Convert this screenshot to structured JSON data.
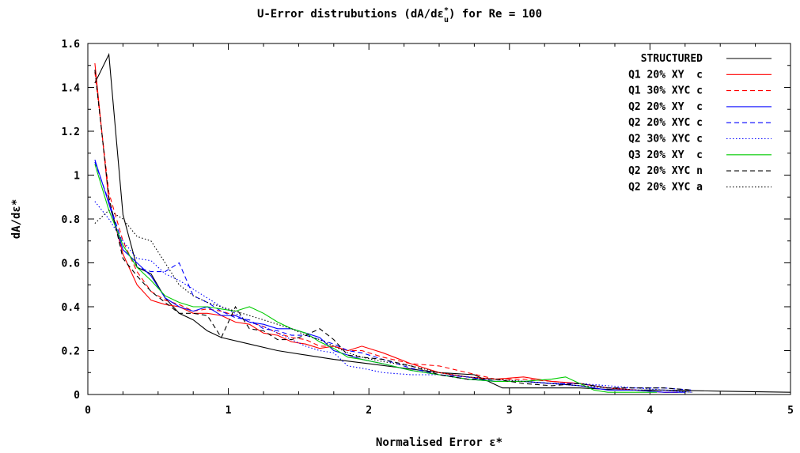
{
  "chart_data": {
    "type": "line",
    "title": "U-Error distrubutions (dA/dε",
    "title_sub": "u",
    "title_sup": "*",
    "title_tail": ") for Re = 100",
    "xlabel": "Normalised Error ε*",
    "ylabel": "dA/dε*",
    "xlim": [
      0,
      5
    ],
    "ylim": [
      0,
      1.6
    ],
    "xticks": [
      "0",
      "1",
      "2",
      "3",
      "4",
      "5"
    ],
    "yticks": [
      "0",
      "0.2",
      "0.4",
      "0.6",
      "0.8",
      "1",
      "1.2",
      "1.4",
      "1.6"
    ],
    "grid": false,
    "legend_position": "top-right",
    "series": [
      {
        "name": "STRUCTURED",
        "color": "#000000",
        "dash": "solid",
        "x": [
          0.05,
          0.15,
          0.25,
          0.35,
          0.45,
          0.55,
          0.65,
          0.75,
          0.85,
          0.95,
          1.15,
          1.35,
          1.55,
          1.75,
          2.0,
          2.25,
          2.5,
          2.75,
          2.85,
          2.95,
          3.2,
          3.5,
          3.8,
          4.1,
          4.5,
          5.0
        ],
        "y": [
          1.42,
          1.55,
          0.82,
          0.58,
          0.55,
          0.44,
          0.37,
          0.34,
          0.29,
          0.26,
          0.23,
          0.2,
          0.18,
          0.16,
          0.14,
          0.12,
          0.1,
          0.09,
          0.06,
          0.03,
          0.03,
          0.03,
          0.02,
          0.02,
          0.015,
          0.01
        ]
      },
      {
        "name": "Q1 20% XY  c",
        "color": "#ff0000",
        "dash": "solid",
        "x": [
          0.05,
          0.15,
          0.25,
          0.35,
          0.45,
          0.55,
          0.65,
          0.75,
          0.85,
          0.95,
          1.05,
          1.15,
          1.25,
          1.35,
          1.45,
          1.55,
          1.65,
          1.75,
          1.85,
          1.95,
          2.1,
          2.3,
          2.5,
          2.7,
          2.9,
          3.1,
          3.3,
          3.5,
          3.7,
          3.9,
          4.1,
          4.2
        ],
        "y": [
          1.51,
          0.88,
          0.64,
          0.5,
          0.43,
          0.41,
          0.4,
          0.37,
          0.37,
          0.36,
          0.33,
          0.32,
          0.28,
          0.27,
          0.24,
          0.23,
          0.21,
          0.22,
          0.2,
          0.22,
          0.19,
          0.14,
          0.1,
          0.08,
          0.07,
          0.08,
          0.06,
          0.05,
          0.03,
          0.02,
          0.01,
          0.01
        ]
      },
      {
        "name": "Q1 30% XYC c",
        "color": "#ff0000",
        "dash": "dashed",
        "x": [
          0.05,
          0.15,
          0.25,
          0.35,
          0.45,
          0.55,
          0.65,
          0.75,
          0.85,
          0.95,
          1.05,
          1.15,
          1.25,
          1.35,
          1.45,
          1.55,
          1.65,
          1.75,
          1.85,
          1.95,
          2.1,
          2.3,
          2.5,
          2.7,
          2.9,
          3.1,
          3.3,
          3.5,
          3.7,
          3.9,
          4.1,
          4.2
        ],
        "y": [
          1.47,
          0.92,
          0.7,
          0.56,
          0.47,
          0.43,
          0.41,
          0.38,
          0.39,
          0.38,
          0.36,
          0.33,
          0.31,
          0.28,
          0.26,
          0.25,
          0.22,
          0.22,
          0.2,
          0.2,
          0.17,
          0.14,
          0.13,
          0.1,
          0.07,
          0.07,
          0.06,
          0.05,
          0.03,
          0.02,
          0.01,
          0.01
        ]
      },
      {
        "name": "Q2 20% XY  c",
        "color": "#0000ff",
        "dash": "solid",
        "x": [
          0.05,
          0.15,
          0.25,
          0.35,
          0.45,
          0.55,
          0.65,
          0.75,
          0.85,
          0.95,
          1.05,
          1.15,
          1.25,
          1.35,
          1.45,
          1.55,
          1.65,
          1.75,
          1.85,
          1.95,
          2.1,
          2.3,
          2.5,
          2.7,
          2.9,
          3.1,
          3.3,
          3.5,
          3.7,
          3.9,
          4.1,
          4.25
        ],
        "y": [
          1.07,
          0.87,
          0.66,
          0.6,
          0.54,
          0.44,
          0.4,
          0.38,
          0.4,
          0.36,
          0.36,
          0.33,
          0.32,
          0.3,
          0.3,
          0.28,
          0.26,
          0.2,
          0.18,
          0.16,
          0.14,
          0.11,
          0.09,
          0.07,
          0.06,
          0.06,
          0.05,
          0.04,
          0.02,
          0.02,
          0.01,
          0.01
        ]
      },
      {
        "name": "Q2 20% XYC c",
        "color": "#0000ff",
        "dash": "dashed",
        "x": [
          0.05,
          0.15,
          0.25,
          0.35,
          0.45,
          0.55,
          0.65,
          0.75,
          0.85,
          0.95,
          1.05,
          1.15,
          1.25,
          1.35,
          1.45,
          1.55,
          1.65,
          1.75,
          1.85,
          1.95,
          2.1,
          2.3,
          2.5,
          2.7,
          2.9,
          3.1,
          3.3,
          3.5,
          3.7,
          3.9,
          4.1,
          4.3
        ],
        "y": [
          1.06,
          0.88,
          0.68,
          0.58,
          0.56,
          0.56,
          0.6,
          0.45,
          0.42,
          0.38,
          0.35,
          0.34,
          0.3,
          0.29,
          0.27,
          0.27,
          0.25,
          0.23,
          0.2,
          0.19,
          0.16,
          0.12,
          0.09,
          0.08,
          0.06,
          0.06,
          0.05,
          0.05,
          0.03,
          0.03,
          0.03,
          0.02
        ]
      },
      {
        "name": "Q2 30% XYC c",
        "color": "#0000ff",
        "dash": "dotted",
        "x": [
          0.05,
          0.15,
          0.25,
          0.35,
          0.45,
          0.55,
          0.65,
          0.75,
          0.85,
          0.95,
          1.05,
          1.15,
          1.25,
          1.35,
          1.45,
          1.55,
          1.65,
          1.75,
          1.85,
          1.95,
          2.1,
          2.3,
          2.5,
          2.7,
          2.9,
          3.1,
          3.3,
          3.5,
          3.7,
          3.9,
          4.1,
          4.3
        ],
        "y": [
          0.88,
          0.8,
          0.7,
          0.62,
          0.61,
          0.55,
          0.52,
          0.48,
          0.44,
          0.4,
          0.37,
          0.33,
          0.31,
          0.28,
          0.25,
          0.22,
          0.2,
          0.19,
          0.13,
          0.12,
          0.1,
          0.09,
          0.09,
          0.08,
          0.06,
          0.06,
          0.05,
          0.05,
          0.04,
          0.03,
          0.02,
          0.01
        ]
      },
      {
        "name": "Q3 20% XY  c",
        "color": "#00cc00",
        "dash": "solid",
        "x": [
          0.05,
          0.15,
          0.25,
          0.35,
          0.45,
          0.55,
          0.65,
          0.75,
          0.85,
          0.95,
          1.05,
          1.15,
          1.25,
          1.35,
          1.45,
          1.55,
          1.65,
          1.75,
          1.85,
          1.95,
          2.1,
          2.3,
          2.5,
          2.7,
          2.9,
          3.1,
          3.3,
          3.4,
          3.5,
          3.6,
          3.7,
          3.9,
          4.05
        ],
        "y": [
          1.05,
          0.84,
          0.68,
          0.58,
          0.52,
          0.45,
          0.42,
          0.4,
          0.4,
          0.39,
          0.38,
          0.4,
          0.37,
          0.33,
          0.3,
          0.28,
          0.24,
          0.21,
          0.17,
          0.16,
          0.14,
          0.11,
          0.09,
          0.07,
          0.06,
          0.06,
          0.07,
          0.08,
          0.05,
          0.02,
          0.01,
          0.01,
          0.01
        ]
      },
      {
        "name": "Q2 20% XYC n",
        "color": "#000000",
        "dash": "dashed",
        "x": [
          0.05,
          0.15,
          0.25,
          0.35,
          0.45,
          0.55,
          0.65,
          0.75,
          0.85,
          0.95,
          1.05,
          1.15,
          1.25,
          1.35,
          1.45,
          1.55,
          1.65,
          1.75,
          1.85,
          1.95,
          2.1,
          2.3,
          2.5,
          2.7,
          2.9,
          3.1,
          3.3,
          3.5,
          3.7,
          3.9,
          4.1,
          4.3
        ],
        "y": [
          1.48,
          0.9,
          0.62,
          0.54,
          0.47,
          0.42,
          0.37,
          0.37,
          0.36,
          0.26,
          0.4,
          0.3,
          0.29,
          0.25,
          0.25,
          0.27,
          0.3,
          0.25,
          0.18,
          0.17,
          0.16,
          0.13,
          0.09,
          0.07,
          0.07,
          0.05,
          0.04,
          0.05,
          0.03,
          0.03,
          0.03,
          0.02
        ]
      },
      {
        "name": "Q2 20% XYC a",
        "color": "#000000",
        "dash": "dotted",
        "x": [
          0.05,
          0.15,
          0.25,
          0.35,
          0.45,
          0.55,
          0.65,
          0.75,
          0.85,
          0.95,
          1.05,
          1.15,
          1.25,
          1.35,
          1.45,
          1.55,
          1.65,
          1.75,
          1.85,
          1.95,
          2.1,
          2.3,
          2.5,
          2.7,
          2.9,
          3.1,
          3.3,
          3.5,
          3.7,
          3.9,
          4.1,
          4.3
        ],
        "y": [
          0.78,
          0.84,
          0.8,
          0.72,
          0.7,
          0.6,
          0.5,
          0.45,
          0.42,
          0.4,
          0.38,
          0.36,
          0.34,
          0.32,
          0.3,
          0.27,
          0.25,
          0.22,
          0.19,
          0.17,
          0.15,
          0.13,
          0.1,
          0.08,
          0.07,
          0.06,
          0.05,
          0.04,
          0.03,
          0.02,
          0.02,
          0.01
        ]
      }
    ]
  }
}
